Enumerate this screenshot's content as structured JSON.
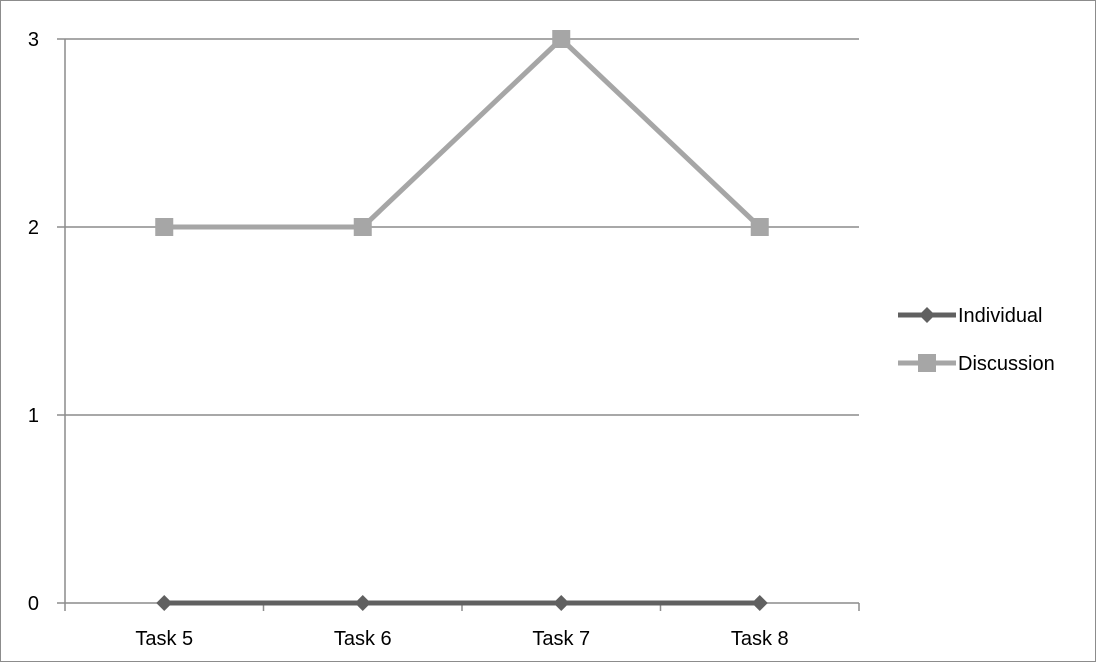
{
  "chart_data": {
    "type": "line",
    "categories": [
      "Task 5",
      "Task 6",
      "Task 7",
      "Task 8"
    ],
    "series": [
      {
        "name": "Individual",
        "values": [
          0,
          0,
          0,
          0
        ],
        "color": "#606060",
        "marker": "diamond"
      },
      {
        "name": "Discussion",
        "values": [
          2,
          2,
          3,
          2
        ],
        "color": "#a6a6a6",
        "marker": "square"
      }
    ],
    "y_ticks": [
      "0",
      "1",
      "2",
      "3"
    ],
    "ylim": [
      0,
      3
    ],
    "grid": "horizontal",
    "legend_position": "right",
    "gridline_color": "#8c8c8c",
    "axis_color": "#8c8c8c"
  }
}
